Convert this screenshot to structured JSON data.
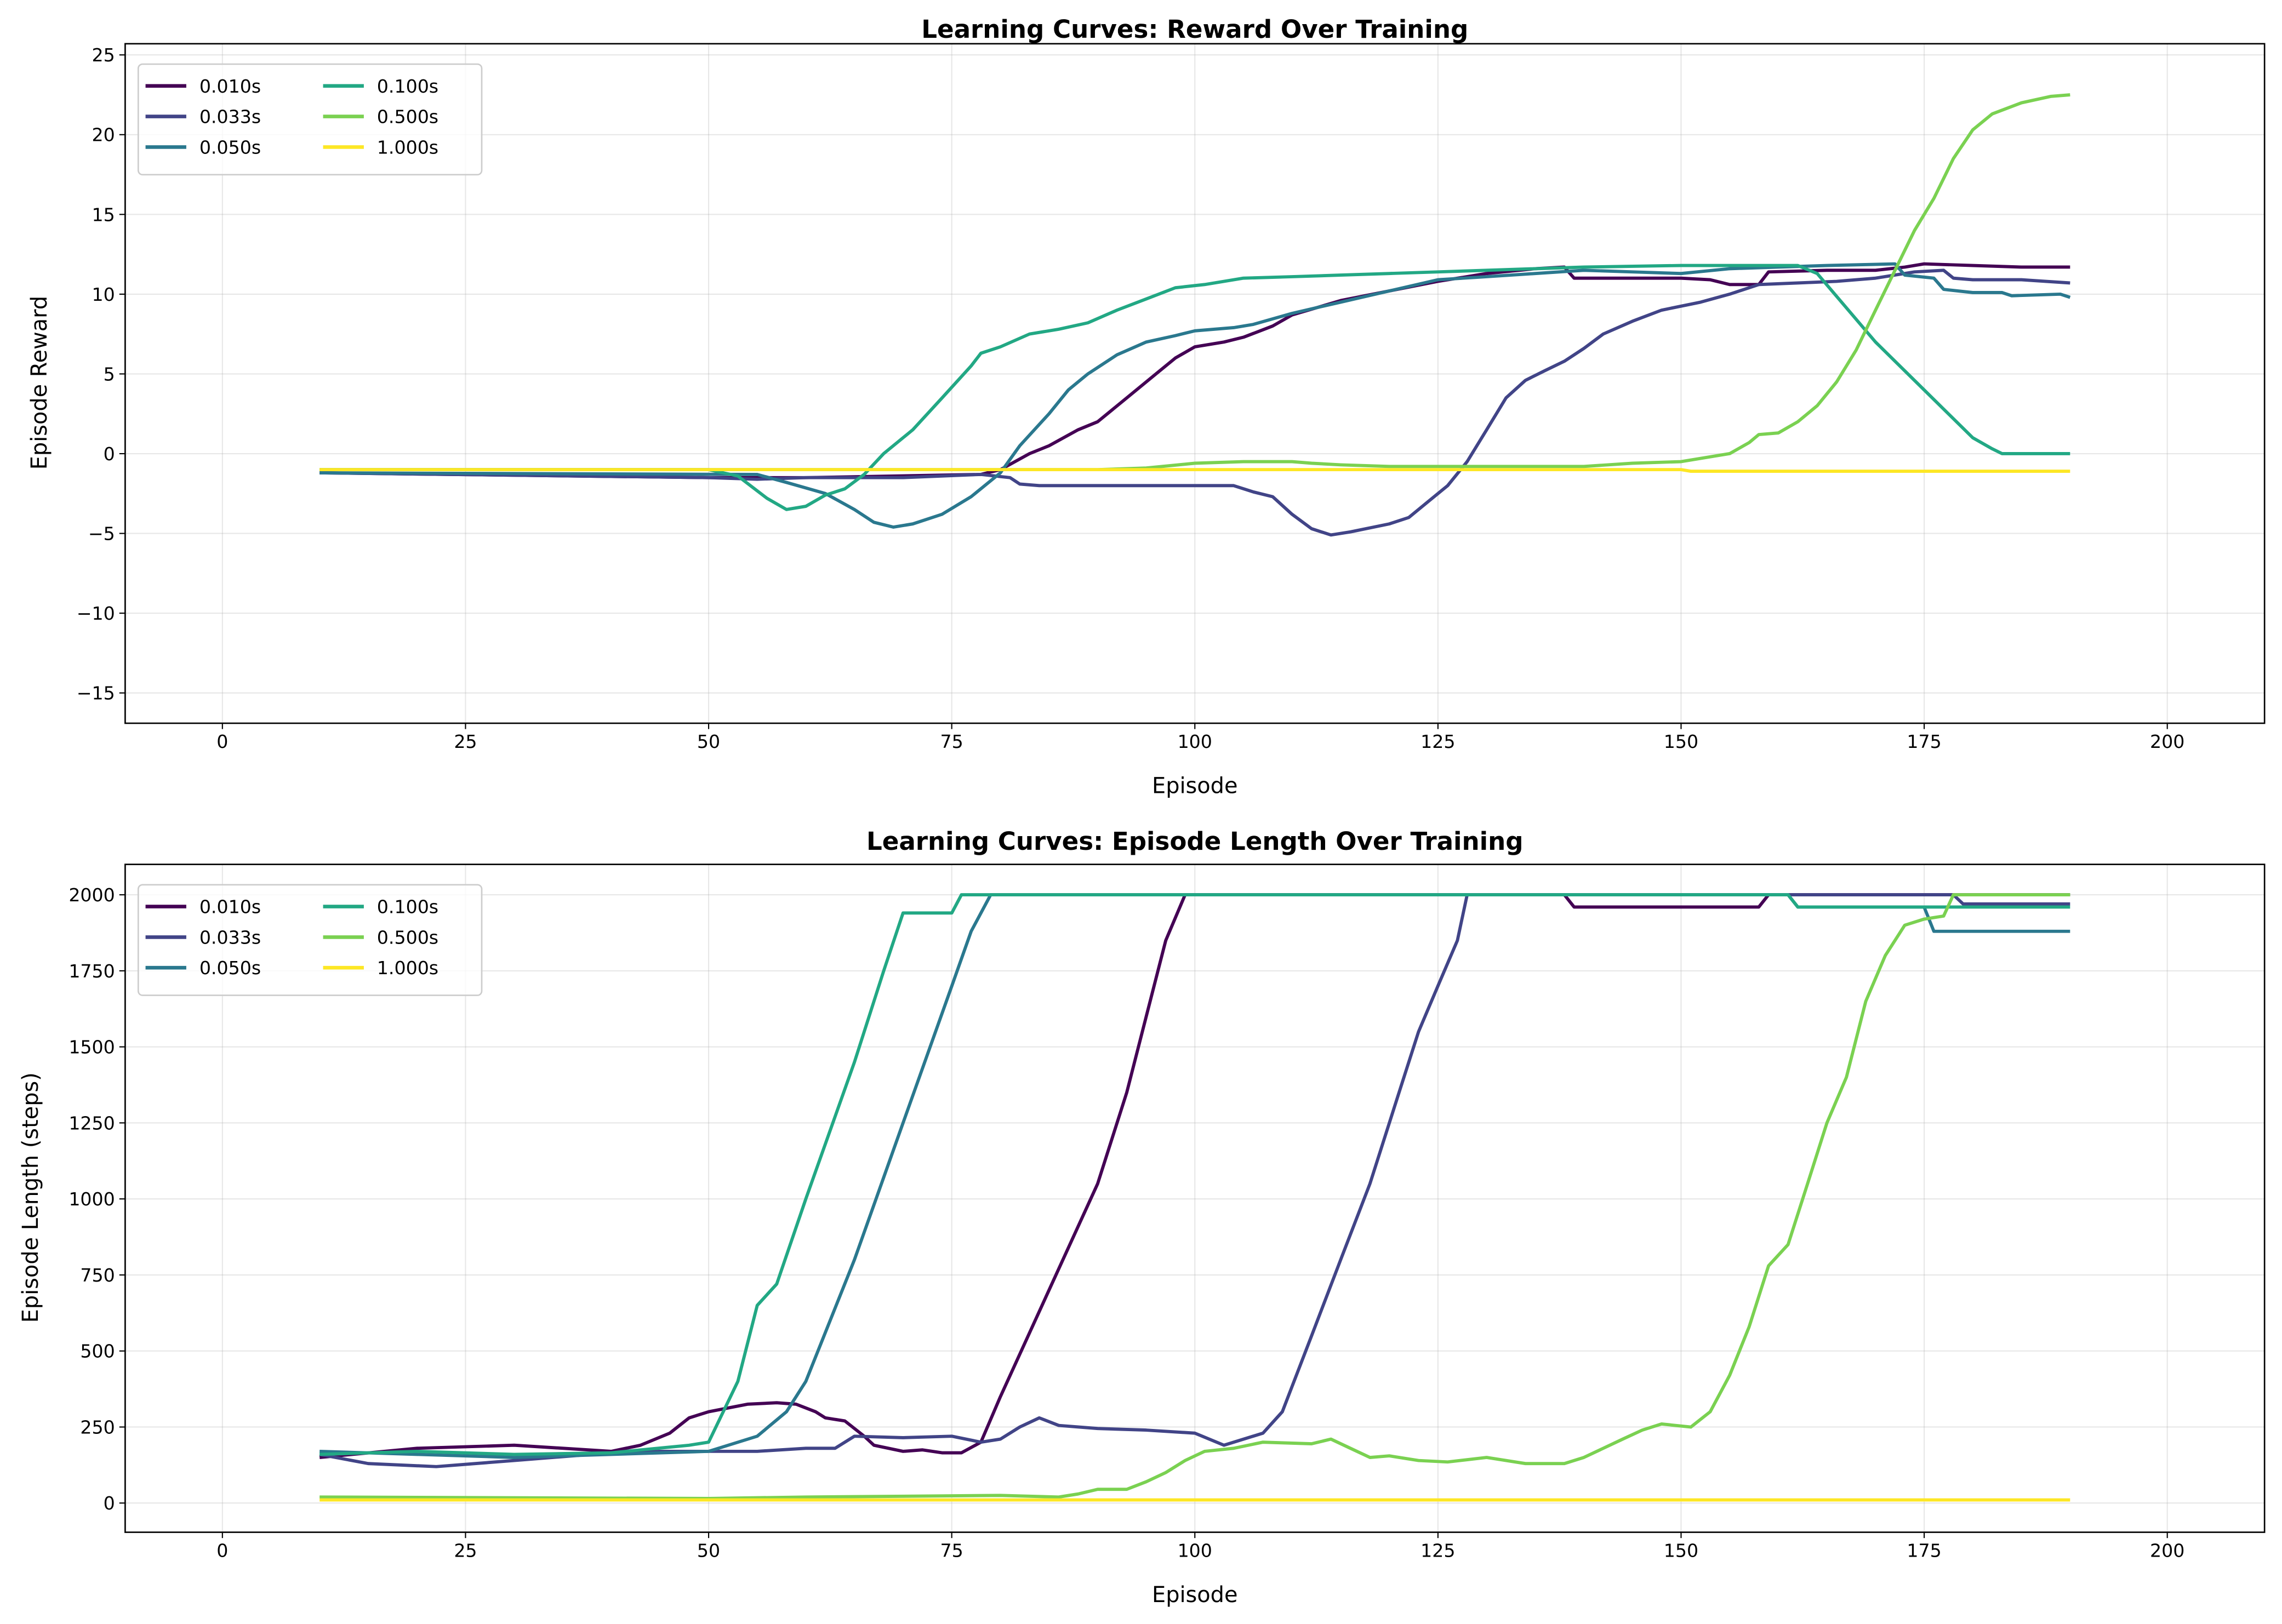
{
  "chart_data": [
    {
      "type": "line",
      "title": "Learning Curves: Reward Over Training",
      "xlabel": "Episode",
      "ylabel": "Episode Reward",
      "xlim": [
        -10,
        210
      ],
      "ylim": [
        -16.9,
        25.7
      ],
      "xticks": [
        0,
        25,
        50,
        75,
        100,
        125,
        150,
        175,
        200
      ],
      "yticks": [
        -15,
        -10,
        -5,
        0,
        5,
        10,
        15,
        20,
        25
      ],
      "grid": true,
      "legend": "top-left",
      "series": [
        {
          "name": "0.010s",
          "color": "#440154",
          "x": [
            10,
            50,
            60,
            78,
            80,
            83,
            85,
            88,
            90,
            93,
            96,
            98,
            100,
            103,
            105,
            108,
            110,
            115,
            120,
            125,
            130,
            135,
            138,
            139,
            145,
            150,
            153,
            155,
            158,
            159,
            165,
            170,
            173,
            175,
            180,
            185,
            190
          ],
          "y": [
            -1.2,
            -1.5,
            -1.5,
            -1.3,
            -1,
            0,
            0.5,
            1.5,
            2,
            3.5,
            5,
            6,
            6.7,
            7,
            7.3,
            8,
            8.7,
            9.6,
            10.2,
            10.8,
            11.3,
            11.6,
            11.7,
            11.0,
            11.0,
            11.0,
            10.9,
            10.6,
            10.6,
            11.4,
            11.5,
            11.5,
            11.7,
            11.9,
            11.8,
            11.7,
            11.7
          ]
        },
        {
          "name": "0.033s",
          "color": "#414487",
          "x": [
            10,
            50,
            55,
            60,
            70,
            78,
            81,
            82,
            84,
            90,
            100,
            104,
            106,
            108,
            110,
            112,
            114,
            116,
            120,
            122,
            124,
            126,
            128,
            130,
            132,
            134,
            136,
            138,
            140,
            142,
            145,
            148,
            152,
            155,
            158,
            162,
            166,
            170,
            174,
            177,
            178,
            180,
            185,
            190
          ],
          "y": [
            -1.2,
            -1.5,
            -1.6,
            -1.5,
            -1.5,
            -1.3,
            -1.5,
            -1.9,
            -2.0,
            -2.0,
            -2.0,
            -2.0,
            -2.4,
            -2.7,
            -3.8,
            -4.7,
            -5.1,
            -4.9,
            -4.4,
            -4.0,
            -3.0,
            -2.0,
            -0.5,
            1.5,
            3.5,
            4.6,
            5.2,
            5.8,
            6.6,
            7.5,
            8.3,
            9.0,
            9.5,
            10.0,
            10.6,
            10.7,
            10.8,
            11.0,
            11.4,
            11.5,
            11.0,
            10.9,
            10.9,
            10.7
          ]
        },
        {
          "name": "0.050s",
          "color": "#2a788e",
          "x": [
            10,
            55,
            58,
            62,
            65,
            67,
            69,
            71,
            74,
            77,
            80,
            82,
            85,
            87,
            89,
            92,
            95,
            98,
            100,
            104,
            106,
            110,
            115,
            120,
            125,
            130,
            135,
            140,
            145,
            150,
            155,
            160,
            165,
            172,
            173,
            176,
            177,
            180,
            183,
            184,
            189,
            190
          ],
          "y": [
            -1.2,
            -1.3,
            -1.8,
            -2.5,
            -3.5,
            -4.3,
            -4.6,
            -4.4,
            -3.8,
            -2.7,
            -1.2,
            0.5,
            2.5,
            4,
            5,
            6.2,
            7.0,
            7.4,
            7.7,
            7.9,
            8.1,
            8.8,
            9.5,
            10.2,
            10.9,
            11.1,
            11.3,
            11.5,
            11.4,
            11.3,
            11.6,
            11.7,
            11.8,
            11.9,
            11.2,
            11.0,
            10.3,
            10.1,
            10.1,
            9.9,
            10.0,
            9.8
          ]
        },
        {
          "name": "0.100s",
          "color": "#22a884",
          "x": [
            10,
            50,
            53,
            56,
            58,
            60,
            62,
            64,
            66,
            68,
            71,
            74,
            77,
            78,
            80,
            83,
            86,
            89,
            92,
            95,
            98,
            101,
            105,
            110,
            115,
            120,
            125,
            130,
            135,
            140,
            150,
            162,
            164,
            170,
            175,
            180,
            182,
            183,
            190
          ],
          "y": [
            -1.0,
            -1.0,
            -1.4,
            -2.8,
            -3.5,
            -3.3,
            -2.6,
            -2.2,
            -1.3,
            0,
            1.5,
            3.5,
            5.5,
            6.3,
            6.7,
            7.5,
            7.8,
            8.2,
            9,
            9.7,
            10.4,
            10.6,
            11,
            11.1,
            11.2,
            11.3,
            11.4,
            11.5,
            11.6,
            11.7,
            11.8,
            11.8,
            11.3,
            7,
            4,
            1.0,
            0.3,
            0,
            0
          ]
        },
        {
          "name": "0.500s",
          "color": "#7ad151",
          "x": [
            10,
            90,
            95,
            100,
            105,
            110,
            112,
            115,
            120,
            130,
            140,
            145,
            150,
            155,
            157,
            158,
            160,
            162,
            164,
            166,
            168,
            170,
            172,
            174,
            176,
            178,
            180,
            182,
            185,
            188,
            190
          ],
          "y": [
            -1.0,
            -1.0,
            -0.9,
            -0.6,
            -0.5,
            -0.5,
            -0.6,
            -0.7,
            -0.8,
            -0.8,
            -0.8,
            -0.6,
            -0.5,
            0,
            0.7,
            1.2,
            1.3,
            2,
            3,
            4.5,
            6.5,
            9,
            11.5,
            14,
            16,
            18.5,
            20.3,
            21.3,
            22,
            22.4,
            22.5
          ]
        },
        {
          "name": "1.000s",
          "color": "#fde725",
          "x": [
            10,
            150,
            151,
            190
          ],
          "y": [
            -1.0,
            -1.0,
            -1.1,
            -1.1
          ]
        }
      ]
    },
    {
      "type": "line",
      "title": "Learning Curves: Episode Length Over Training",
      "xlabel": "Episode",
      "ylabel": "Episode Length (steps)",
      "xlim": [
        -10,
        210
      ],
      "ylim": [
        -96,
        2100
      ],
      "xticks": [
        0,
        25,
        50,
        75,
        100,
        125,
        150,
        175,
        200
      ],
      "yticks": [
        0,
        250,
        500,
        750,
        1000,
        1250,
        1500,
        1750,
        2000
      ],
      "grid": true,
      "legend": "top-left",
      "series": [
        {
          "name": "0.010s",
          "color": "#440154",
          "x": [
            10,
            20,
            30,
            40,
            43,
            46,
            48,
            50,
            54,
            57,
            59,
            61,
            62,
            64,
            66,
            67,
            70,
            72,
            74,
            76,
            78,
            80,
            85,
            90,
            93,
            95,
            97,
            99,
            138,
            139,
            158,
            159,
            190
          ],
          "y": [
            150,
            180,
            190,
            170,
            190,
            230,
            280,
            300,
            325,
            330,
            325,
            300,
            280,
            270,
            220,
            190,
            170,
            175,
            165,
            165,
            200,
            350,
            700,
            1050,
            1350,
            1600,
            1850,
            2000,
            2000,
            1960,
            1960,
            2000,
            2000
          ]
        },
        {
          "name": "0.033s",
          "color": "#414487",
          "x": [
            10,
            15,
            22,
            30,
            40,
            45,
            55,
            60,
            63,
            65,
            70,
            75,
            78,
            80,
            82,
            84,
            86,
            90,
            95,
            100,
            103,
            107,
            109,
            112,
            115,
            118,
            121,
            123,
            125,
            127,
            128,
            178,
            179,
            190
          ],
          "y": [
            160,
            130,
            120,
            140,
            165,
            170,
            170,
            180,
            180,
            220,
            215,
            220,
            200,
            210,
            250,
            280,
            255,
            245,
            240,
            230,
            190,
            230,
            300,
            550,
            800,
            1050,
            1350,
            1550,
            1700,
            1850,
            2000,
            2000,
            1970,
            1970
          ]
        },
        {
          "name": "0.050s",
          "color": "#2a788e",
          "x": [
            10,
            20,
            30,
            40,
            50,
            55,
            58,
            60,
            65,
            70,
            75,
            77,
            79,
            161,
            162,
            175,
            176,
            190
          ],
          "y": [
            170,
            160,
            150,
            160,
            170,
            220,
            300,
            400,
            800,
            1250,
            1700,
            1880,
            2000,
            2000,
            1960,
            1960,
            1880,
            1880
          ]
        },
        {
          "name": "0.100s",
          "color": "#22a884",
          "x": [
            10,
            20,
            30,
            40,
            48,
            50,
            53,
            55,
            57,
            60,
            65,
            68,
            70,
            75,
            76,
            161,
            162,
            190
          ],
          "y": [
            160,
            170,
            160,
            165,
            190,
            200,
            400,
            650,
            720,
            1000,
            1450,
            1750,
            1940,
            1940,
            2000,
            2000,
            1960,
            1960
          ]
        },
        {
          "name": "0.500s",
          "color": "#7ad151",
          "x": [
            10,
            50,
            60,
            80,
            86,
            88,
            90,
            93,
            95,
            97,
            99,
            101,
            104,
            107,
            112,
            114,
            116,
            118,
            120,
            123,
            126,
            130,
            134,
            138,
            140,
            144,
            146,
            148,
            151,
            153,
            155,
            157,
            159,
            161,
            163,
            165,
            167,
            169,
            171,
            173,
            175,
            177,
            178,
            190
          ],
          "y": [
            20,
            15,
            20,
            25,
            20,
            30,
            45,
            45,
            70,
            100,
            140,
            170,
            180,
            200,
            195,
            210,
            180,
            150,
            155,
            140,
            135,
            150,
            130,
            130,
            150,
            210,
            240,
            260,
            250,
            300,
            420,
            580,
            780,
            850,
            1050,
            1250,
            1400,
            1650,
            1800,
            1900,
            1920,
            1930,
            2000,
            2000
          ]
        },
        {
          "name": "1.000s",
          "color": "#fde725",
          "x": [
            10,
            190
          ],
          "y": [
            10,
            10
          ]
        }
      ]
    }
  ]
}
